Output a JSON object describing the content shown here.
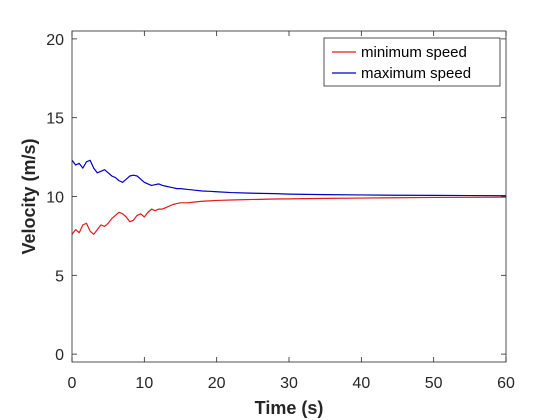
{
  "chart_data": {
    "type": "line",
    "title": "",
    "xlabel": "Time (s)",
    "ylabel": "Velocity (m/s)",
    "xlim": [
      0,
      60
    ],
    "ylim": [
      -0.5,
      20.5
    ],
    "xticks": [
      0,
      10,
      20,
      30,
      40,
      50,
      60
    ],
    "yticks": [
      0,
      5,
      10,
      15,
      20
    ],
    "grid": false,
    "legend": "top-right",
    "series": [
      {
        "name": "minimum speed",
        "color": "#e31a1c",
        "x": [
          0,
          0.5,
          1,
          1.5,
          2,
          2.5,
          3,
          3.5,
          4,
          4.5,
          5,
          5.5,
          6,
          6.5,
          7,
          7.5,
          8,
          8.5,
          9,
          9.5,
          10,
          10.5,
          11,
          11.5,
          12,
          12.5,
          13,
          13.5,
          14,
          14.5,
          15,
          16,
          17,
          18,
          19,
          20,
          22,
          24,
          26,
          28,
          30,
          35,
          40,
          45,
          50,
          55,
          60
        ],
        "y": [
          7.6,
          7.9,
          7.7,
          8.2,
          8.3,
          7.8,
          7.6,
          7.9,
          8.2,
          8.1,
          8.3,
          8.6,
          8.8,
          9.0,
          8.9,
          8.7,
          8.4,
          8.5,
          8.8,
          8.9,
          8.7,
          9.0,
          9.2,
          9.1,
          9.2,
          9.2,
          9.3,
          9.4,
          9.5,
          9.55,
          9.6,
          9.6,
          9.65,
          9.7,
          9.72,
          9.75,
          9.78,
          9.8,
          9.82,
          9.84,
          9.85,
          9.88,
          9.9,
          9.92,
          9.94,
          9.95,
          9.96
        ]
      },
      {
        "name": "maximum speed",
        "color": "#0000c8",
        "x": [
          0,
          0.5,
          1,
          1.5,
          2,
          2.5,
          3,
          3.5,
          4,
          4.5,
          5,
          5.5,
          6,
          6.5,
          7,
          7.5,
          8,
          8.5,
          9,
          9.5,
          10,
          10.5,
          11,
          11.5,
          12,
          12.5,
          13,
          13.5,
          14,
          14.5,
          15,
          16,
          17,
          18,
          19,
          20,
          22,
          24,
          26,
          28,
          30,
          35,
          40,
          45,
          50,
          55,
          60
        ],
        "y": [
          12.3,
          12.0,
          12.1,
          11.8,
          12.2,
          12.3,
          11.8,
          11.5,
          11.6,
          11.7,
          11.5,
          11.3,
          11.2,
          11.0,
          10.9,
          11.1,
          11.3,
          11.35,
          11.3,
          11.1,
          10.9,
          10.8,
          10.7,
          10.75,
          10.8,
          10.7,
          10.65,
          10.6,
          10.55,
          10.5,
          10.5,
          10.45,
          10.4,
          10.35,
          10.33,
          10.3,
          10.25,
          10.22,
          10.2,
          10.18,
          10.15,
          10.12,
          10.1,
          10.08,
          10.07,
          10.06,
          10.05
        ]
      }
    ]
  }
}
